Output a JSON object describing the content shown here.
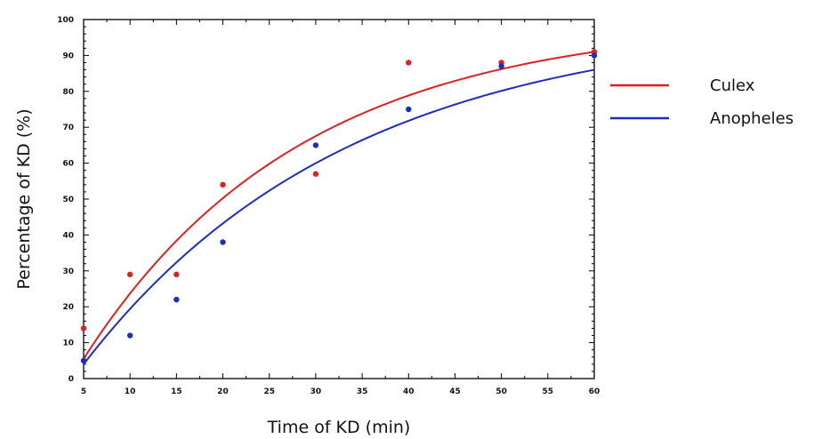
{
  "chart_data": {
    "type": "scatter",
    "title": "",
    "xlabel": "Time of KD (min)",
    "ylabel": "Percentage of KD (%)",
    "xlim": [
      5,
      60
    ],
    "ylim": [
      0,
      100
    ],
    "xticks": [
      5,
      10,
      15,
      20,
      25,
      30,
      35,
      40,
      45,
      50,
      55,
      60
    ],
    "xtick_labels": [
      "5",
      "10",
      "15",
      "20",
      "25",
      "30",
      "35",
      "40",
      "45",
      "50",
      "55",
      "60"
    ],
    "yticks": [
      0,
      10,
      20,
      30,
      40,
      50,
      60,
      70,
      80,
      90,
      100
    ],
    "ytick_labels": [
      "0",
      "10",
      "20",
      "30",
      "40",
      "50",
      "60",
      "70",
      "80",
      "90",
      "100"
    ],
    "grid": false,
    "legend_position": "right",
    "fit_curve": "exponential",
    "series": [
      {
        "name": "Culex",
        "color": "#e02020",
        "points": [
          {
            "x": 5,
            "y": 14
          },
          {
            "x": 10,
            "y": 29
          },
          {
            "x": 15,
            "y": 29
          },
          {
            "x": 20,
            "y": 54
          },
          {
            "x": 30,
            "y": 57
          },
          {
            "x": 40,
            "y": 88
          },
          {
            "x": 50,
            "y": 88
          },
          {
            "x": 60,
            "y": 91
          }
        ],
        "fit_start": [
          5,
          5.5
        ],
        "fit_end": [
          60,
          91
        ]
      },
      {
        "name": "Anopheles",
        "color": "#1a2fc0",
        "points": [
          {
            "x": 5,
            "y": 5
          },
          {
            "x": 10,
            "y": 12
          },
          {
            "x": 15,
            "y": 22
          },
          {
            "x": 20,
            "y": 38
          },
          {
            "x": 30,
            "y": 65
          },
          {
            "x": 40,
            "y": 75
          },
          {
            "x": 50,
            "y": 87
          },
          {
            "x": 60,
            "y": 90
          }
        ],
        "fit_start": [
          5,
          4
        ],
        "fit_end": [
          60,
          86
        ]
      }
    ]
  }
}
